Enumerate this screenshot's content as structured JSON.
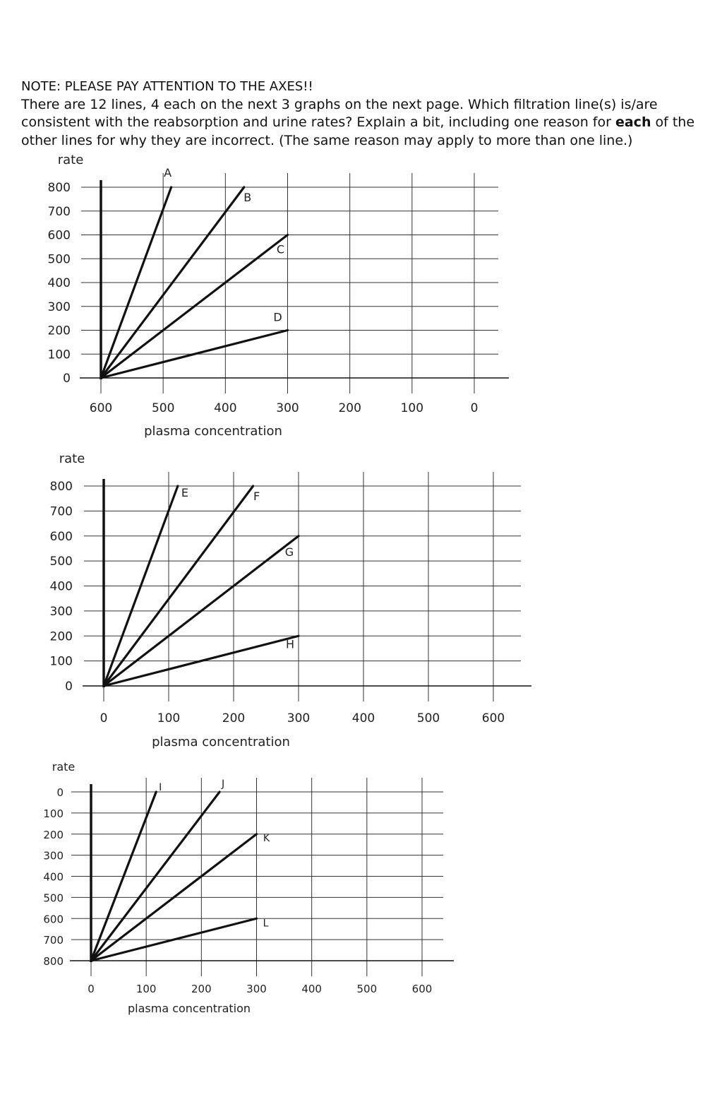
{
  "instructions": {
    "line1": "NOTE: PLEASE PAY ATTENTION TO THE AXES!!",
    "line2_before": "There are 12 lines, 4 each on the next 3 graphs on the next page. Which filtration line(s) is/are consistent with the reabsorption and urine rates? Explain a bit, including one reason for ",
    "line2_bold": "each",
    "line2_after": " of the other lines for why they are incorrect. (The same reason may apply to more than one line.)"
  },
  "chart_data": [
    {
      "type": "line",
      "ylabel": "rate",
      "xlabel": "plasma concentration",
      "x_ticks": [
        600,
        500,
        400,
        300,
        200,
        100,
        0
      ],
      "y_ticks": [
        800,
        700,
        600,
        500,
        400,
        300,
        200,
        100,
        0
      ],
      "xlim": [
        600,
        0
      ],
      "ylim": [
        0,
        800
      ],
      "grid": true,
      "series": [
        {
          "name": "A",
          "x": [
            600,
            487
          ],
          "y": [
            0,
            800
          ]
        },
        {
          "name": "B",
          "x": [
            600,
            370
          ],
          "y": [
            0,
            800
          ]
        },
        {
          "name": "C",
          "x": [
            600,
            300
          ],
          "y": [
            0,
            600
          ]
        },
        {
          "name": "D",
          "x": [
            600,
            300
          ],
          "y": [
            0,
            200
          ]
        }
      ]
    },
    {
      "type": "line",
      "ylabel": "rate",
      "xlabel": "plasma concentration",
      "x_ticks": [
        0,
        100,
        200,
        300,
        400,
        500,
        600
      ],
      "y_ticks": [
        800,
        700,
        600,
        500,
        400,
        300,
        200,
        100,
        0
      ],
      "xlim": [
        0,
        600
      ],
      "ylim": [
        0,
        800
      ],
      "grid": true,
      "series": [
        {
          "name": "E",
          "x": [
            0,
            114
          ],
          "y": [
            0,
            800
          ]
        },
        {
          "name": "F",
          "x": [
            0,
            230
          ],
          "y": [
            0,
            800
          ]
        },
        {
          "name": "G",
          "x": [
            0,
            300
          ],
          "y": [
            0,
            600
          ]
        },
        {
          "name": "H",
          "x": [
            0,
            300
          ],
          "y": [
            0,
            200
          ]
        }
      ]
    },
    {
      "type": "line",
      "ylabel": "rate",
      "xlabel": "plasma concentration",
      "x_ticks": [
        0,
        100,
        200,
        300,
        400,
        500,
        600
      ],
      "y_ticks": [
        0,
        100,
        200,
        300,
        400,
        500,
        600,
        700,
        800
      ],
      "xlim": [
        0,
        600
      ],
      "ylim": [
        800,
        0
      ],
      "grid": true,
      "series": [
        {
          "name": "I",
          "x": [
            0,
            118
          ],
          "y": [
            800,
            0
          ]
        },
        {
          "name": "J",
          "x": [
            0,
            233
          ],
          "y": [
            800,
            0
          ]
        },
        {
          "name": "K",
          "x": [
            0,
            300
          ],
          "y": [
            800,
            200
          ]
        },
        {
          "name": "L",
          "x": [
            0,
            300
          ],
          "y": [
            800,
            600
          ]
        }
      ]
    }
  ]
}
